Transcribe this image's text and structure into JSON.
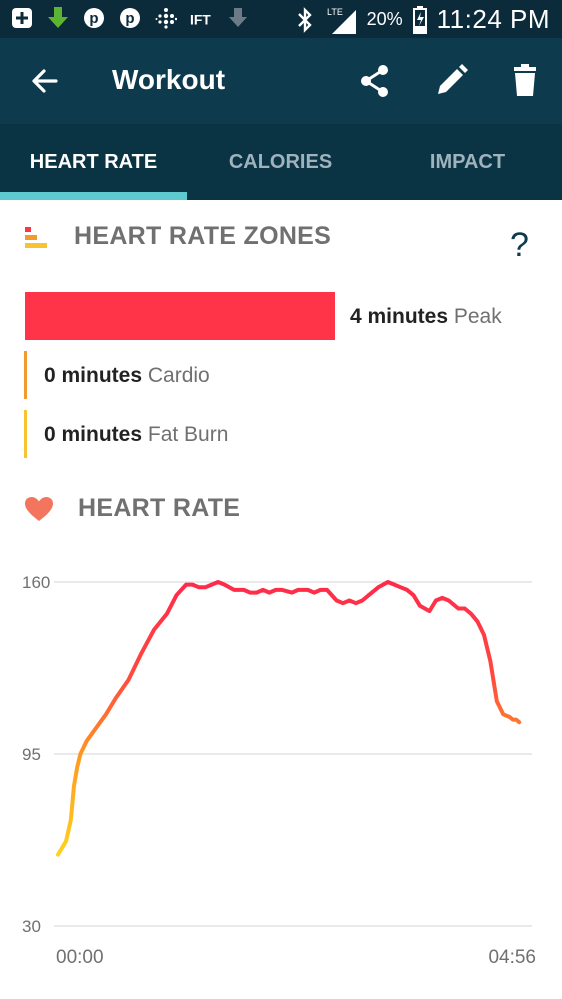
{
  "status_bar": {
    "icons": [
      "add-icon",
      "download-icon",
      "pinterest-icon",
      "pinterest-icon",
      "fitbit-icon",
      "ifttt-icon",
      "download-arrow-icon",
      "bluetooth-icon",
      "lte-signal-icon",
      "battery-icon"
    ],
    "network": "LTE",
    "battery": "20%",
    "time": "11:24 PM"
  },
  "app_bar": {
    "title": "Workout",
    "actions": [
      "back-arrow-icon",
      "share-icon",
      "edit-icon",
      "trash-icon"
    ]
  },
  "tabs": [
    {
      "label": "HEART RATE",
      "active": true
    },
    {
      "label": "CALORIES",
      "active": false
    },
    {
      "label": "IMPACT",
      "active": false
    }
  ],
  "zones_section": {
    "title": "HEART RATE ZONES",
    "help": "?",
    "zones": [
      {
        "minutes": "4 minutes",
        "name": "Peak",
        "color": "#ff3448"
      },
      {
        "minutes": "0 minutes",
        "name": "Cardio",
        "color": "#f29a2e"
      },
      {
        "minutes": "0 minutes",
        "name": "Fat Burn",
        "color": "#f6c42e"
      }
    ]
  },
  "heart_rate_section": {
    "title": "HEART RATE"
  },
  "colors": {
    "status_bar": "#0b2a3a",
    "app_bar": "#0e3a4d",
    "tabs_bg": "#0a3344",
    "tab_indicator": "#5ec9cf",
    "peak": "#ff3448",
    "gradient_low": "#ffd21e",
    "gradient_high": "#ff2a4a"
  },
  "chart_data": {
    "type": "line",
    "y_ticks": [
      "160",
      "95",
      "30"
    ],
    "ylim": [
      30,
      160
    ],
    "x_ticks": [
      "00:00",
      "04:56"
    ],
    "xlim_seconds": [
      0,
      296
    ],
    "grid": true,
    "series": [
      {
        "x": [
          0,
          5,
          8,
          10,
          12,
          14,
          18,
          24,
          30,
          36,
          44,
          52,
          60,
          68,
          74,
          80,
          84,
          88,
          92,
          96,
          100,
          104,
          110,
          116,
          120,
          124,
          128,
          132,
          136,
          140,
          146,
          150,
          156,
          160,
          164,
          168,
          174,
          178,
          182,
          186,
          190,
          194,
          200,
          206,
          210,
          214,
          218,
          222,
          226,
          232,
          236,
          240,
          244,
          250,
          254,
          258,
          262,
          266,
          270,
          274,
          278,
          282,
          284,
          286,
          288
        ],
        "y": [
          57,
          62,
          70,
          83,
          90,
          95,
          100,
          105,
          110,
          116,
          123,
          133,
          142,
          148,
          155,
          159,
          159,
          158,
          158,
          159,
          160,
          159,
          157,
          157,
          156,
          156,
          157,
          156,
          157,
          157,
          156,
          157,
          157,
          156,
          157,
          157,
          153,
          152,
          153,
          152,
          153,
          155,
          158,
          160,
          159,
          158,
          157,
          155,
          151,
          149,
          153,
          154,
          153,
          150,
          150,
          148,
          145,
          140,
          130,
          115,
          110,
          109,
          108,
          108,
          107
        ]
      }
    ]
  }
}
